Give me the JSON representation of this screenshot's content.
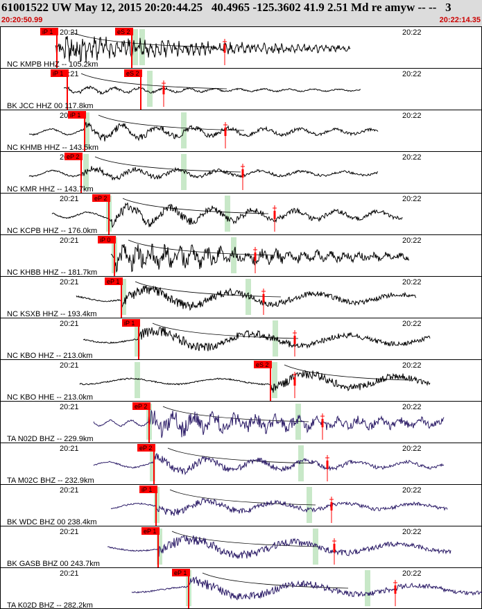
{
  "header": {
    "title": "61001522 UW May 12, 2015 20:20:44.25   40.4965 -125.3602 41.9 2.51 Md re amyw -- --   3",
    "start_time": "20:20:50.99",
    "end_time": "20:22:14.35"
  },
  "time_ticks": [
    "20:21",
    "20:22"
  ],
  "colors": {
    "pick_red": "#ff0000",
    "window_green": "#c8e8c8",
    "trace_black": "#000000",
    "trace_navy": "#2a1a66",
    "header_bg": "#dcdcdc",
    "time_red": "#cc0000"
  },
  "stations": [
    {
      "label": "NC KMPB HHZ -- 105.2km",
      "picks": [
        "iP 1",
        "eS 2"
      ],
      "color": "black"
    },
    {
      "label": "BK JCC HHZ 00 117.8km",
      "picks": [
        "iP 1",
        "eS 2"
      ],
      "color": "black"
    },
    {
      "label": "NC KHMB HHZ -- 143.5km",
      "picks": [
        "iP 1"
      ],
      "color": "black"
    },
    {
      "label": "NC KMR HHZ -- 143.7km",
      "picks": [
        "eP 2"
      ],
      "color": "black"
    },
    {
      "label": "NC KCPB HHZ -- 176.0km",
      "picks": [
        "eP 2"
      ],
      "color": "black"
    },
    {
      "label": "NC KHBB HHZ -- 181.7km",
      "picks": [
        "iP 0"
      ],
      "color": "black"
    },
    {
      "label": "NC KSXB HHZ -- 193.4km",
      "picks": [
        "eP 1"
      ],
      "color": "black"
    },
    {
      "label": "NC KBO HHZ -- 213.0km",
      "picks": [
        "iP 1"
      ],
      "color": "black"
    },
    {
      "label": "NC KBO HHE -- 213.0km",
      "picks": [
        "eS 2"
      ],
      "color": "black"
    },
    {
      "label": "TA N02D BHZ -- 229.9km",
      "picks": [
        "eP 2"
      ],
      "color": "navy"
    },
    {
      "label": "TA M02C BHZ -- 232.9km",
      "picks": [
        "eP 2"
      ],
      "color": "navy"
    },
    {
      "label": "BK WDC BHZ 00 238.4km",
      "picks": [
        "iP 1"
      ],
      "color": "navy"
    },
    {
      "label": "BK GASB BHZ 00 243.7km",
      "picks": [
        "eP 1"
      ],
      "color": "navy"
    },
    {
      "label": "TA K02D BHZ -- 282.2km",
      "picks": [
        "eP 1"
      ],
      "color": "navy"
    }
  ]
}
